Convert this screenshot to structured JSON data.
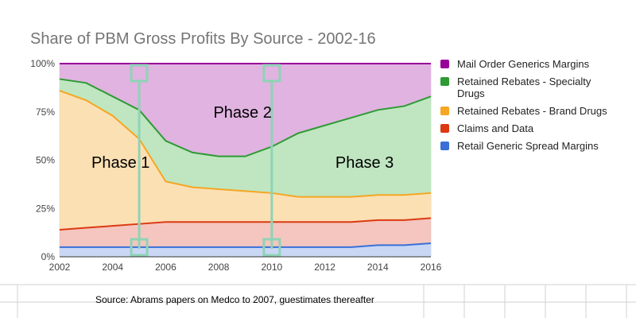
{
  "chart_data": {
    "type": "area",
    "stacked": true,
    "percent_stacked": true,
    "title": "Share of PBM Gross Profits By Source - 2002-16",
    "x": [
      2002,
      2003,
      2004,
      2005,
      2006,
      2007,
      2008,
      2009,
      2010,
      2011,
      2012,
      2013,
      2014,
      2015,
      2016
    ],
    "x_tick_labels": [
      "2002",
      "2004",
      "2006",
      "2008",
      "2010",
      "2012",
      "2014",
      "2016"
    ],
    "y_tick_labels": [
      "0%",
      "25%",
      "50%",
      "75%",
      "100%"
    ],
    "ylim": [
      0,
      100
    ],
    "xlim": [
      2002,
      2016
    ],
    "grid": true,
    "legend_position": "right",
    "series": [
      {
        "name": "Retail Generic Spread Margins",
        "color": "#3a6fd8",
        "fill": "#c9d7f5",
        "values": [
          5,
          5,
          5,
          5,
          5,
          5,
          5,
          5,
          5,
          5,
          5,
          5,
          6,
          6,
          7
        ]
      },
      {
        "name": "Claims and Data",
        "color": "#dc3912",
        "fill": "#f4c6bf",
        "values": [
          9,
          10,
          11,
          12,
          13,
          13,
          13,
          13,
          13,
          13,
          13,
          13,
          13,
          13,
          13
        ]
      },
      {
        "name": "Retained Rebates - Brand Drugs",
        "color": "#f5a623",
        "fill": "#fbe0b4",
        "values": [
          72,
          66,
          57,
          44,
          21,
          18,
          17,
          16,
          15,
          13,
          13,
          13,
          13,
          13,
          13
        ]
      },
      {
        "name": "Retained Rebates - Specialty Drugs",
        "color": "#2e9a34",
        "fill": "#bfe6c0",
        "values": [
          6,
          9,
          10,
          15,
          21,
          18,
          17,
          18,
          24,
          33,
          37,
          41,
          44,
          46,
          50
        ]
      },
      {
        "name": "Mail Order Generics Margins",
        "color": "#990099",
        "fill": "#e0b3e0",
        "values": [
          8,
          10,
          17,
          24,
          40,
          46,
          48,
          48,
          43,
          36,
          32,
          28,
          24,
          22,
          17
        ]
      }
    ],
    "legend_order": [
      "Mail Order Generics Margins",
      "Retained Rebates - Specialty Drugs",
      "Retained Rebates - Brand Drugs",
      "Claims and Data",
      "Retail Generic Spread Margins"
    ],
    "annotations": [
      {
        "text": "Phase 1",
        "x": 2003.2,
        "y": 46
      },
      {
        "text": "Phase 2",
        "x": 2007.8,
        "y": 72
      },
      {
        "text": "Phase 3",
        "x": 2012.4,
        "y": 46
      }
    ],
    "markers": [
      {
        "x": 2005,
        "color": "#8fd3b6"
      },
      {
        "x": 2010,
        "color": "#8fd3b6"
      }
    ]
  },
  "source": "Source: Abrams papers on Medco to 2007, guestimates thereafter"
}
